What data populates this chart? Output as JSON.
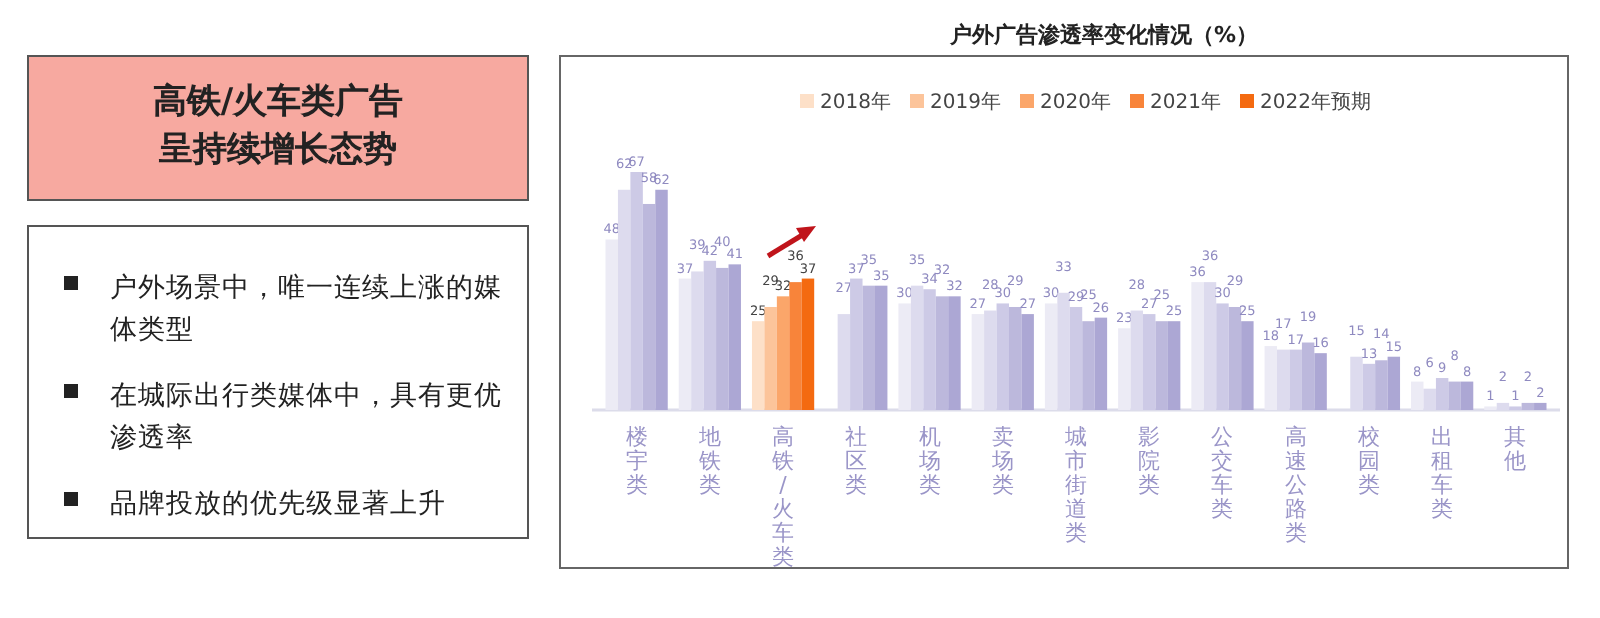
{
  "chart_data": [
    {
      "type": "other",
      "title": "高铁/火车类广告呈持续增长态势",
      "annotations": [
        "户外场景中，唯一连续上涨的媒体类型",
        "在城际出行类媒体中，具有更优渗透率",
        "品牌投放的优先级显著上升"
      ]
    },
    {
      "type": "bar",
      "title": "户外广告渗透率变化情况（%）",
      "legend": "top",
      "data_labels": true,
      "categories": [
        "楼宇类",
        "地铁类",
        "高铁/火车类",
        "社区类",
        "机场类",
        "卖场类",
        "城市街道类",
        "影院类",
        "公交车类",
        "高速公路类",
        "校园类",
        "出租车类",
        "其他"
      ],
      "series": [
        {
          "name": "2018年",
          "color": "#fde0c8",
          "colors": [
            "#ecebf5",
            "#ecebf5",
            "#fde0c8",
            "#ecebf5",
            "#ecebf5",
            "#ecebf5",
            "#ecebf5",
            "#ecebf5",
            "#ecebf5",
            "#ecebf5",
            "#ecebf5",
            "#ecebf5",
            "#ecebf5"
          ],
          "values": [
            48,
            37,
            25,
            null,
            30,
            27,
            30,
            23,
            36,
            18,
            null,
            8,
            1
          ]
        },
        {
          "name": "2019年",
          "color": "#fcc49a",
          "colors": [
            "#dddbee",
            "#dddbee",
            "#fcc49a",
            "#dddbee",
            "#dddbee",
            "#dddbee",
            "#dddbee",
            "#dddbee",
            "#dddbee",
            "#dddbee",
            "#dddbee",
            "#dddbee",
            "#dddbee"
          ],
          "values": [
            62,
            39,
            29,
            27,
            35,
            28,
            33,
            28,
            36,
            17,
            15,
            6,
            2
          ]
        },
        {
          "name": "2020年",
          "color": "#fba66a",
          "colors": [
            "#cdcae6",
            "#cdcae6",
            "#fba66a",
            "#cdcae6",
            "#cdcae6",
            "#cdcae6",
            "#cdcae6",
            "#cdcae6",
            "#cdcae6",
            "#cdcae6",
            "#cdcae6",
            "#cdcae6",
            "#cdcae6"
          ],
          "values": [
            67,
            42,
            32,
            37,
            34,
            30,
            29,
            27,
            30,
            17,
            13,
            9,
            1
          ]
        },
        {
          "name": "2021年",
          "color": "#f8843a",
          "colors": [
            "#bcb8dc",
            "#bcb8dc",
            "#f8843a",
            "#bcb8dc",
            "#bcb8dc",
            "#bcb8dc",
            "#bcb8dc",
            "#bcb8dc",
            "#bcb8dc",
            "#bcb8dc",
            "#bcb8dc",
            "#bcb8dc",
            "#bcb8dc"
          ],
          "values": [
            58,
            40,
            36,
            35,
            32,
            29,
            25,
            25,
            29,
            19,
            14,
            8,
            2
          ]
        },
        {
          "name": "2022年预期",
          "color": "#f46a10",
          "colors": [
            "#aca7d4",
            "#aca7d4",
            "#f46a10",
            "#aca7d4",
            "#aca7d4",
            "#aca7d4",
            "#aca7d4",
            "#aca7d4",
            "#aca7d4",
            "#aca7d4",
            "#aca7d4",
            "#aca7d4",
            "#aca7d4"
          ],
          "values": [
            62,
            41,
            37,
            35,
            32,
            27,
            26,
            25,
            25,
            16,
            15,
            8,
            2
          ]
        }
      ]
    }
  ]
}
